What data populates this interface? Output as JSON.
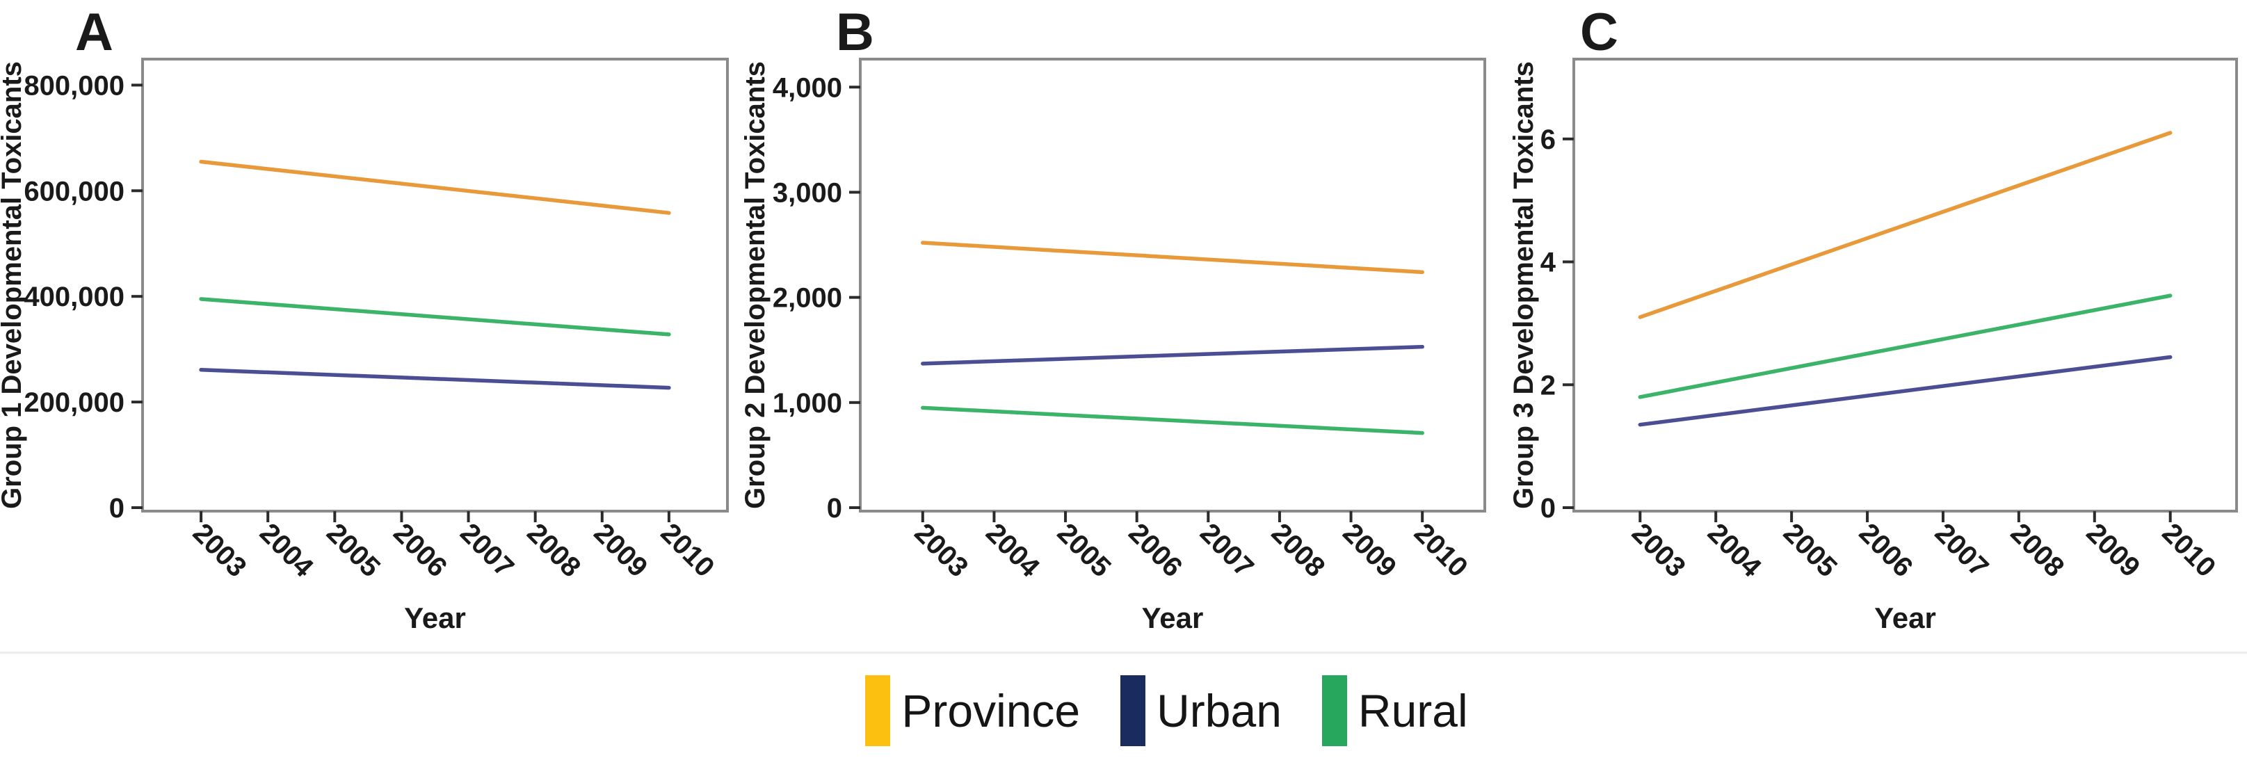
{
  "figure": {
    "background_color": "#ffffff",
    "divider_color": "#ededed"
  },
  "style": {
    "frame_color": "#8a8a8a",
    "tick_color": "#2b2b2b",
    "text_color": "#1a1a1a"
  },
  "legend": {
    "items": [
      {
        "label": "Province",
        "color": "#FCC010"
      },
      {
        "label": "Urban",
        "color": "#1A2C5E"
      },
      {
        "label": "Rural",
        "color": "#27A75D"
      }
    ]
  },
  "chart_data": [
    {
      "type": "line",
      "panel_label": "A",
      "xlabel": "Year",
      "ylabel": "Group 1 Developmental Toxicants",
      "x": [
        2003,
        2010
      ],
      "x_tick_labels": [
        "2003",
        "2004",
        "2005",
        "2006",
        "2007",
        "2008",
        "2009",
        "2010"
      ],
      "y_ticks": [
        0,
        200000,
        400000,
        600000,
        800000
      ],
      "y_tick_labels": [
        "0",
        "200,000",
        "400,000",
        "600,000",
        "800,000"
      ],
      "ylim": [
        0,
        840000
      ],
      "grid": false,
      "legend_position": "shared-bottom",
      "series": [
        {
          "name": "Province",
          "color": "#E8993A",
          "values": [
            655000,
            558000
          ]
        },
        {
          "name": "Urban",
          "color": "#4C4E94",
          "values": [
            261000,
            227000
          ]
        },
        {
          "name": "Rural",
          "color": "#3BB368",
          "values": [
            395000,
            328000
          ]
        }
      ]
    },
    {
      "type": "line",
      "panel_label": "B",
      "xlabel": "Year",
      "ylabel": "Group 2 Developmental Toxicants",
      "x": [
        2003,
        2010
      ],
      "x_tick_labels": [
        "2003",
        "2004",
        "2005",
        "2006",
        "2007",
        "2008",
        "2009",
        "2010"
      ],
      "y_ticks": [
        0,
        1000,
        2000,
        3000,
        4000
      ],
      "y_tick_labels": [
        "0",
        "1,000",
        "2,000",
        "3,000",
        "4,000"
      ],
      "ylim": [
        0,
        4220
      ],
      "grid": false,
      "legend_position": "shared-bottom",
      "series": [
        {
          "name": "Province",
          "color": "#E8993A",
          "values": [
            2520,
            2240
          ]
        },
        {
          "name": "Urban",
          "color": "#4C4E94",
          "values": [
            1370,
            1530
          ]
        },
        {
          "name": "Rural",
          "color": "#3BB368",
          "values": [
            950,
            710
          ]
        }
      ]
    },
    {
      "type": "line",
      "panel_label": "C",
      "xlabel": "Year",
      "ylabel": "Group 3 Developmental Toxicants",
      "x": [
        2003,
        2010
      ],
      "x_tick_labels": [
        "2003",
        "2004",
        "2005",
        "2006",
        "2007",
        "2008",
        "2009",
        "2010"
      ],
      "y_ticks": [
        0,
        2,
        4,
        6
      ],
      "y_tick_labels": [
        "0",
        "2",
        "4",
        "6"
      ],
      "ylim": [
        0,
        7.22
      ],
      "grid": false,
      "legend_position": "shared-bottom",
      "series": [
        {
          "name": "Province",
          "color": "#E8993A",
          "values": [
            3.1,
            6.1
          ]
        },
        {
          "name": "Urban",
          "color": "#4C4E94",
          "values": [
            1.35,
            2.45
          ]
        },
        {
          "name": "Rural",
          "color": "#3BB368",
          "values": [
            1.8,
            3.45
          ]
        }
      ]
    }
  ]
}
